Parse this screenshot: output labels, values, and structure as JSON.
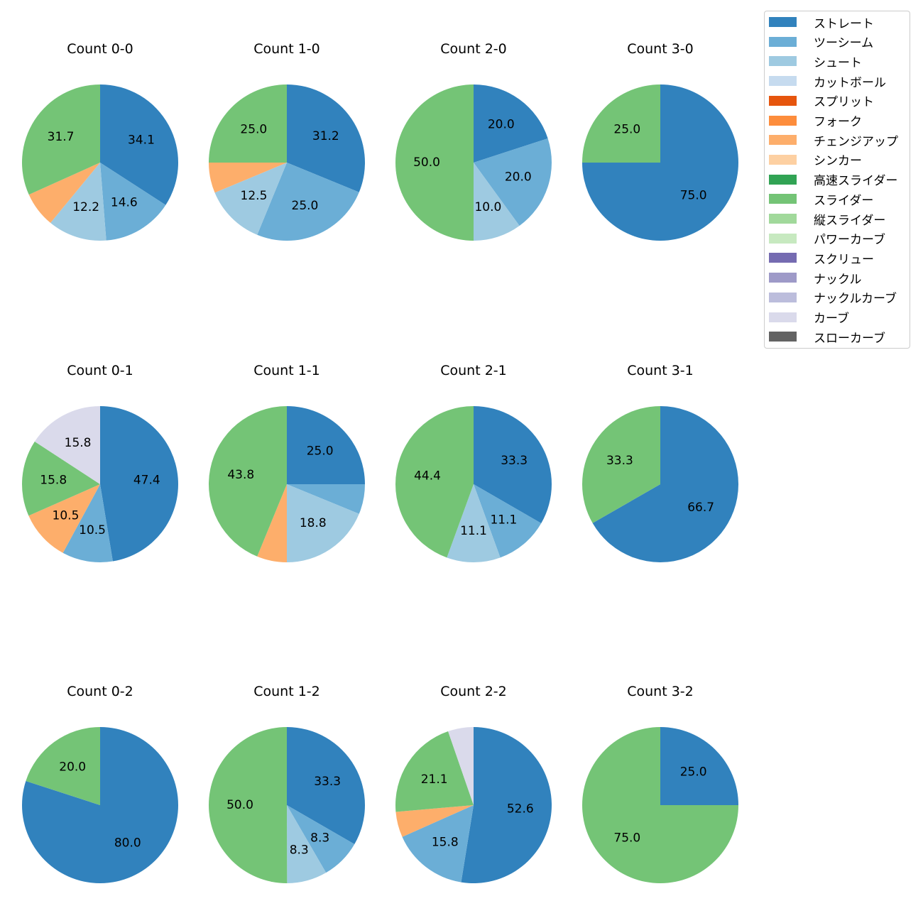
{
  "colors": {
    "ストレート": "#3182bd",
    "ツーシーム": "#6baed6",
    "シュート": "#9ecae1",
    "カットボール": "#c6dbef",
    "スプリット": "#e6550d",
    "フォーク": "#fd8d3c",
    "チェンジアップ": "#fdae6b",
    "シンカー": "#fdd0a2",
    "高速スライダー": "#31a354",
    "スライダー": "#74c476",
    "縦スライダー": "#a1d99b",
    "パワーカーブ": "#c7e9c0",
    "スクリュー": "#756bb1",
    "ナックル": "#9e9ac8",
    "ナックルカーブ": "#bcbddc",
    "カーブ": "#dadaeb",
    "スローカーブ": "#636363"
  },
  "legend": [
    "ストレート",
    "ツーシーム",
    "シュート",
    "カットボール",
    "スプリット",
    "フォーク",
    "チェンジアップ",
    "シンカー",
    "高速スライダー",
    "スライダー",
    "縦スライダー",
    "パワーカーブ",
    "スクリュー",
    "ナックル",
    "ナックルカーブ",
    "カーブ",
    "スローカーブ"
  ],
  "chart_data": [
    {
      "type": "pie",
      "title": "Count 0-0",
      "categories": [
        "ストレート",
        "ツーシーム",
        "シュート",
        "チェンジアップ",
        "スライダー"
      ],
      "values": [
        34.1,
        14.6,
        12.2,
        7.3,
        31.7
      ],
      "labels": [
        "34.1",
        "14.6",
        "12.2",
        "",
        "31.7"
      ]
    },
    {
      "type": "pie",
      "title": "Count 1-0",
      "categories": [
        "ストレート",
        "ツーシーム",
        "シュート",
        "チェンジアップ",
        "スライダー"
      ],
      "values": [
        31.2,
        25.0,
        12.5,
        6.3,
        25.0
      ],
      "labels": [
        "31.2",
        "25.0",
        "12.5",
        "",
        "25.0"
      ]
    },
    {
      "type": "pie",
      "title": "Count 2-0",
      "categories": [
        "ストレート",
        "ツーシーム",
        "シュート",
        "スライダー"
      ],
      "values": [
        20.0,
        20.0,
        10.0,
        50.0
      ],
      "labels": [
        "20.0",
        "20.0",
        "10.0",
        "50.0"
      ]
    },
    {
      "type": "pie",
      "title": "Count 3-0",
      "categories": [
        "ストレート",
        "スライダー"
      ],
      "values": [
        75.0,
        25.0
      ],
      "labels": [
        "75.0",
        "25.0"
      ]
    },
    {
      "type": "pie",
      "title": "Count 0-1",
      "categories": [
        "ストレート",
        "ツーシーム",
        "チェンジアップ",
        "スライダー",
        "カーブ"
      ],
      "values": [
        47.4,
        10.5,
        10.5,
        15.8,
        15.8
      ],
      "labels": [
        "47.4",
        "10.5",
        "10.5",
        "15.8",
        "15.8"
      ]
    },
    {
      "type": "pie",
      "title": "Count 1-1",
      "categories": [
        "ストレート",
        "ツーシーム",
        "シュート",
        "チェンジアップ",
        "スライダー"
      ],
      "values": [
        25.0,
        6.2,
        18.8,
        6.2,
        43.8
      ],
      "labels": [
        "25.0",
        "",
        "18.8",
        "",
        "43.8"
      ]
    },
    {
      "type": "pie",
      "title": "Count 2-1",
      "categories": [
        "ストレート",
        "ツーシーム",
        "シュート",
        "スライダー"
      ],
      "values": [
        33.3,
        11.1,
        11.1,
        44.4
      ],
      "labels": [
        "33.3",
        "11.1",
        "11.1",
        "44.4"
      ]
    },
    {
      "type": "pie",
      "title": "Count 3-1",
      "categories": [
        "ストレート",
        "スライダー"
      ],
      "values": [
        66.7,
        33.3
      ],
      "labels": [
        "66.7",
        "33.3"
      ]
    },
    {
      "type": "pie",
      "title": "Count 0-2",
      "categories": [
        "ストレート",
        "スライダー"
      ],
      "values": [
        80.0,
        20.0
      ],
      "labels": [
        "80.0",
        "20.0"
      ]
    },
    {
      "type": "pie",
      "title": "Count 1-2",
      "categories": [
        "ストレート",
        "ツーシーム",
        "シュート",
        "スライダー"
      ],
      "values": [
        33.3,
        8.3,
        8.3,
        50.0
      ],
      "labels": [
        "33.3",
        "8.3",
        "8.3",
        "50.0"
      ]
    },
    {
      "type": "pie",
      "title": "Count 2-2",
      "categories": [
        "ストレート",
        "ツーシーム",
        "チェンジアップ",
        "スライダー",
        "カーブ"
      ],
      "values": [
        52.6,
        15.8,
        5.3,
        21.1,
        5.3
      ],
      "labels": [
        "52.6",
        "15.8",
        "",
        "21.1",
        ""
      ]
    },
    {
      "type": "pie",
      "title": "Count 3-2",
      "categories": [
        "ストレート",
        "スライダー"
      ],
      "values": [
        25.0,
        75.0
      ],
      "labels": [
        "25.0",
        "75.0"
      ]
    }
  ]
}
